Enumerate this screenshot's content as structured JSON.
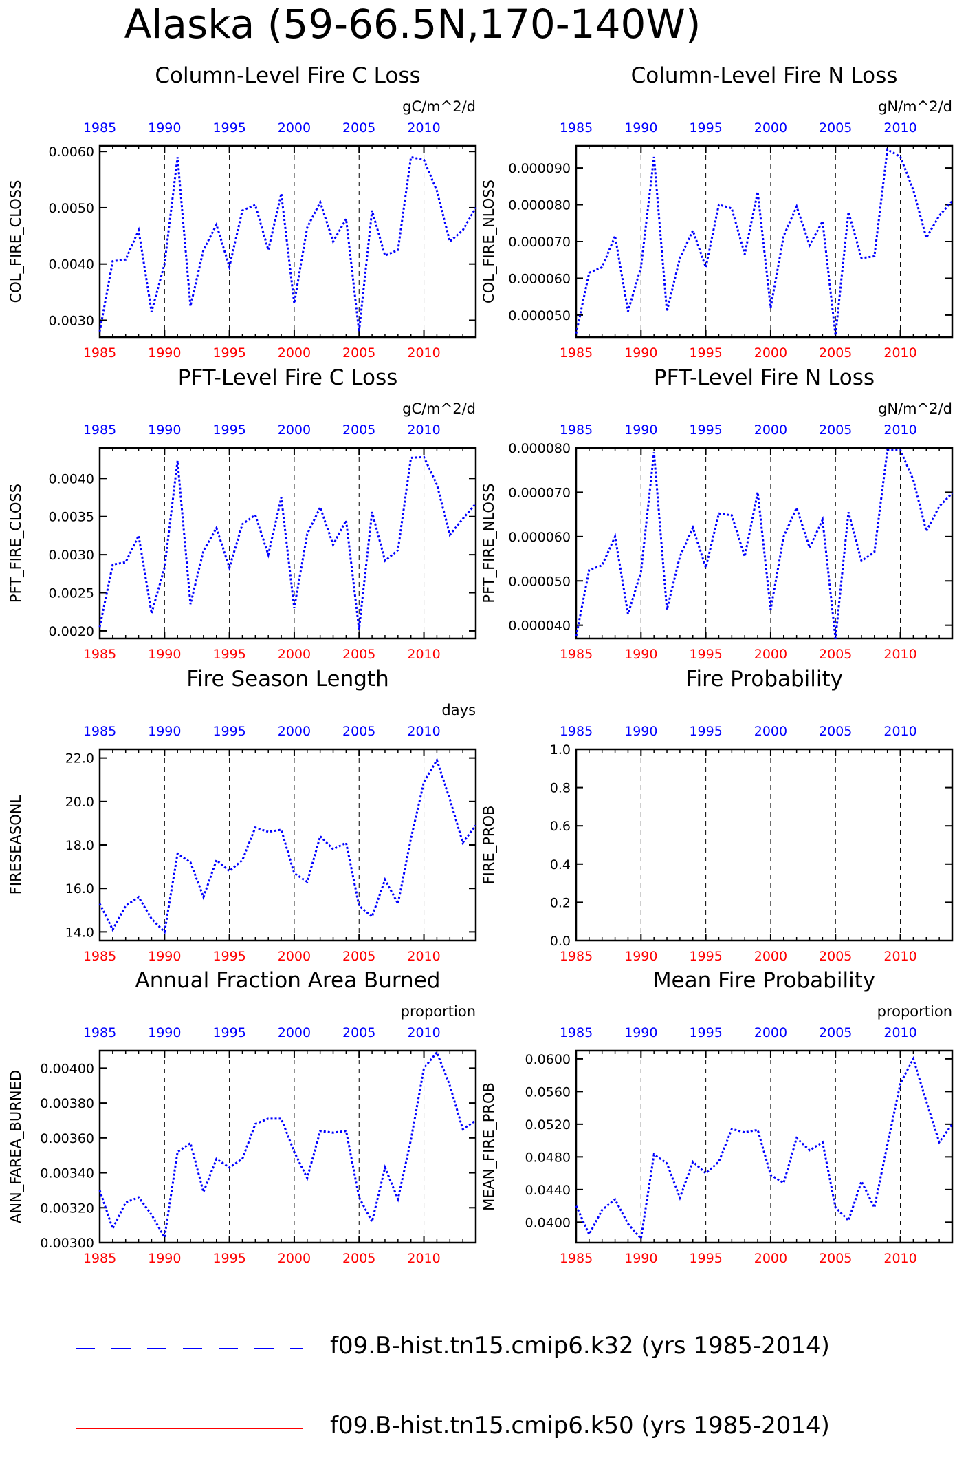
{
  "title": "Alaska (59-66.5N,170-140W)",
  "colors": {
    "bottom_axis": "#ff0000",
    "top_axis": "#0000ff",
    "series_blue": "#0000ff",
    "series_red": "#ff0000"
  },
  "legend": [
    {
      "label": "f09.B-hist.tn15.cmip6.k32 (yrs 1985-2014)",
      "color": "#0000ff",
      "style": "dashed"
    },
    {
      "label": "f09.B-hist.tn15.cmip6.k50 (yrs 1985-2014)",
      "color": "#ff0000",
      "style": "solid"
    }
  ],
  "chart_data": [
    {
      "type": "line",
      "title": "Column-Level Fire C Loss",
      "ylabel": "COL_FIRE_CLOSS",
      "units": "gC/m^2/d",
      "xlim": [
        1985,
        2014
      ],
      "ylim": [
        0.0027,
        0.0061
      ],
      "yticks": [
        "0.0030",
        "0.0040",
        "0.0050",
        "0.0060"
      ],
      "ytick_values": [
        0.003,
        0.004,
        0.005,
        0.006
      ],
      "xticks": [
        "1985",
        "1990",
        "1995",
        "2000",
        "2005",
        "2010"
      ],
      "x": [
        1985,
        1986,
        1987,
        1988,
        1989,
        1990,
        1991,
        1992,
        1993,
        1994,
        1995,
        1996,
        1997,
        1998,
        1999,
        2000,
        2001,
        2002,
        2003,
        2004,
        2005,
        2006,
        2007,
        2008,
        2009,
        2010,
        2011,
        2012,
        2013,
        2014
      ],
      "values": [
        0.0028,
        0.00405,
        0.00408,
        0.0046,
        0.00315,
        0.004,
        0.0059,
        0.00325,
        0.00425,
        0.0047,
        0.00395,
        0.00495,
        0.00505,
        0.00425,
        0.00525,
        0.0033,
        0.00465,
        0.0051,
        0.0044,
        0.0048,
        0.0028,
        0.00495,
        0.00415,
        0.00425,
        0.0059,
        0.00585,
        0.0053,
        0.0044,
        0.0046,
        0.005
      ]
    },
    {
      "type": "line",
      "title": "Column-Level Fire N Loss",
      "ylabel": "COL_FIRE_NLOSS",
      "units": "gN/m^2/d",
      "xlim": [
        1985,
        2014
      ],
      "ylim": [
        4.4e-05,
        9.6e-05
      ],
      "yticks": [
        "0.000050",
        "0.000060",
        "0.000070",
        "0.000080",
        "0.000090"
      ],
      "ytick_values": [
        5e-05,
        6e-05,
        7e-05,
        8e-05,
        9e-05
      ],
      "xticks": [
        "1985",
        "1990",
        "1995",
        "2000",
        "2005",
        "2010"
      ],
      "x": [
        1985,
        1986,
        1987,
        1988,
        1989,
        1990,
        1991,
        1992,
        1993,
        1994,
        1995,
        1996,
        1997,
        1998,
        1999,
        2000,
        2001,
        2002,
        2003,
        2004,
        2005,
        2006,
        2007,
        2008,
        2009,
        2010,
        2011,
        2012,
        2013,
        2014
      ],
      "values": [
        4.5e-05,
        6.15e-05,
        6.3e-05,
        7.15e-05,
        5.1e-05,
        6.3e-05,
        9.3e-05,
        5.1e-05,
        6.55e-05,
        7.3e-05,
        6.3e-05,
        8e-05,
        7.9e-05,
        6.65e-05,
        8.35e-05,
        5.2e-05,
        7.15e-05,
        7.95e-05,
        6.9e-05,
        7.55e-05,
        4.45e-05,
        7.8e-05,
        6.55e-05,
        6.6e-05,
        9.5e-05,
        9.3e-05,
        8.4e-05,
        7.1e-05,
        7.7e-05,
        8.1e-05
      ]
    },
    {
      "type": "line",
      "title": "PFT-Level Fire C Loss",
      "ylabel": "PFT_FIRE_CLOSS",
      "units": "gC/m^2/d",
      "xlim": [
        1985,
        2014
      ],
      "ylim": [
        0.0019,
        0.0044
      ],
      "yticks": [
        "0.0020",
        "0.0025",
        "0.0030",
        "0.0035",
        "0.0040"
      ],
      "ytick_values": [
        0.002,
        0.0025,
        0.003,
        0.0035,
        0.004
      ],
      "xticks": [
        "1985",
        "1990",
        "1995",
        "2000",
        "2005",
        "2010"
      ],
      "x": [
        1985,
        1986,
        1987,
        1988,
        1989,
        1990,
        1991,
        1992,
        1993,
        1994,
        1995,
        1996,
        1997,
        1998,
        1999,
        2000,
        2001,
        2002,
        2003,
        2004,
        2005,
        2006,
        2007,
        2008,
        2009,
        2010,
        2011,
        2012,
        2013,
        2014
      ],
      "values": [
        0.00205,
        0.00287,
        0.0029,
        0.00325,
        0.00223,
        0.00283,
        0.00423,
        0.00235,
        0.00305,
        0.00335,
        0.00283,
        0.0034,
        0.00352,
        0.003,
        0.00375,
        0.0023,
        0.00327,
        0.00362,
        0.00313,
        0.00345,
        0.00202,
        0.00356,
        0.00292,
        0.00306,
        0.00427,
        0.00428,
        0.00392,
        0.00326,
        0.00347,
        0.00367
      ]
    },
    {
      "type": "line",
      "title": "PFT-Level Fire N Loss",
      "ylabel": "PFT_FIRE_NLOSS",
      "units": "gN/m^2/d",
      "xlim": [
        1985,
        2014
      ],
      "ylim": [
        3.7e-05,
        8e-05
      ],
      "yticks": [
        "0.000040",
        "0.000050",
        "0.000060",
        "0.000070",
        "0.000080"
      ],
      "ytick_values": [
        4e-05,
        5e-05,
        6e-05,
        7e-05,
        8e-05
      ],
      "xticks": [
        "1985",
        "1990",
        "1995",
        "2000",
        "2005",
        "2010"
      ],
      "x": [
        1985,
        1986,
        1987,
        1988,
        1989,
        1990,
        1991,
        1992,
        1993,
        1994,
        1995,
        1996,
        1997,
        1998,
        1999,
        2000,
        2001,
        2002,
        2003,
        2004,
        2005,
        2006,
        2007,
        2008,
        2009,
        2010,
        2011,
        2012,
        2013,
        2014
      ],
      "values": [
        3.75e-05,
        5.25e-05,
        5.35e-05,
        6e-05,
        4.25e-05,
        5.2e-05,
        7.9e-05,
        4.35e-05,
        5.55e-05,
        6.2e-05,
        5.3e-05,
        6.52e-05,
        6.48e-05,
        5.55e-05,
        7e-05,
        4.35e-05,
        6e-05,
        6.65e-05,
        5.75e-05,
        6.38e-05,
        3.7e-05,
        6.55e-05,
        5.45e-05,
        5.65e-05,
        7.95e-05,
        7.95e-05,
        7.28e-05,
        6.12e-05,
        6.68e-05,
        6.98e-05
      ]
    },
    {
      "type": "line",
      "title": "Fire Season Length",
      "ylabel": "FIRESEASONL",
      "units": "days",
      "xlim": [
        1985,
        2014
      ],
      "ylim": [
        13.6,
        22.4
      ],
      "yticks": [
        "14.0",
        "16.0",
        "18.0",
        "20.0",
        "22.0"
      ],
      "ytick_values": [
        14,
        16,
        18,
        20,
        22
      ],
      "xticks": [
        "1985",
        "1990",
        "1995",
        "2000",
        "2005",
        "2010"
      ],
      "x": [
        1985,
        1986,
        1987,
        1988,
        1989,
        1990,
        1991,
        1992,
        1993,
        1994,
        1995,
        1996,
        1997,
        1998,
        1999,
        2000,
        2001,
        2002,
        2003,
        2004,
        2005,
        2006,
        2007,
        2008,
        2009,
        2010,
        2011,
        2012,
        2013,
        2014
      ],
      "values": [
        15.3,
        14.1,
        15.2,
        15.6,
        14.6,
        14.0,
        17.6,
        17.2,
        15.6,
        17.3,
        16.8,
        17.3,
        18.8,
        18.6,
        18.7,
        16.7,
        16.3,
        18.4,
        17.8,
        18.1,
        15.2,
        14.7,
        16.4,
        15.3,
        18.3,
        20.9,
        21.9,
        20.1,
        18.1,
        18.9
      ]
    },
    {
      "type": "line",
      "title": "Fire Probability",
      "ylabel": "FIRE_PROB",
      "units": "",
      "xlim": [
        1985,
        2014
      ],
      "ylim": [
        0.0,
        1.0
      ],
      "yticks": [
        "0.0",
        "0.2",
        "0.4",
        "0.6",
        "0.8",
        "1.0"
      ],
      "ytick_values": [
        0,
        0.2,
        0.4,
        0.6,
        0.8,
        1.0
      ],
      "xticks": [
        "1985",
        "1990",
        "1995",
        "2000",
        "2005",
        "2010"
      ],
      "x": [],
      "values": []
    },
    {
      "type": "line",
      "title": "Annual Fraction Area Burned",
      "ylabel": "ANN_FAREA_BURNED",
      "units": "proportion",
      "xlim": [
        1985,
        2014
      ],
      "ylim": [
        0.003,
        0.0041
      ],
      "yticks": [
        "0.00300",
        "0.00320",
        "0.00340",
        "0.00360",
        "0.00380",
        "0.00400"
      ],
      "ytick_values": [
        0.003,
        0.0032,
        0.0034,
        0.0036,
        0.0038,
        0.004
      ],
      "xticks": [
        "1985",
        "1990",
        "1995",
        "2000",
        "2005",
        "2010"
      ],
      "x": [
        1985,
        1986,
        1987,
        1988,
        1989,
        1990,
        1991,
        1992,
        1993,
        1994,
        1995,
        1996,
        1997,
        1998,
        1999,
        2000,
        2001,
        2002,
        2003,
        2004,
        2005,
        2006,
        2007,
        2008,
        2009,
        2010,
        2011,
        2012,
        2013,
        2014
      ],
      "values": [
        0.0033,
        0.00308,
        0.00323,
        0.00326,
        0.00316,
        0.00303,
        0.00352,
        0.00357,
        0.00329,
        0.00348,
        0.00343,
        0.00348,
        0.00368,
        0.00371,
        0.00371,
        0.00352,
        0.00337,
        0.00364,
        0.00363,
        0.00364,
        0.00326,
        0.00312,
        0.00343,
        0.00325,
        0.00359,
        0.004,
        0.00409,
        0.0039,
        0.00365,
        0.0037
      ]
    },
    {
      "type": "line",
      "title": "Mean Fire Probability",
      "ylabel": "MEAN_FIRE_PROB",
      "units": "proportion",
      "xlim": [
        1985,
        2014
      ],
      "ylim": [
        0.0375,
        0.061
      ],
      "yticks": [
        "0.0400",
        "0.0440",
        "0.0480",
        "0.0520",
        "0.0560",
        "0.0600"
      ],
      "ytick_values": [
        0.04,
        0.044,
        0.048,
        0.052,
        0.056,
        0.06
      ],
      "xticks": [
        "1985",
        "1990",
        "1995",
        "2000",
        "2005",
        "2010"
      ],
      "x": [
        1985,
        1986,
        1987,
        1988,
        1989,
        1990,
        1991,
        1992,
        1993,
        1994,
        1995,
        1996,
        1997,
        1998,
        1999,
        2000,
        2001,
        2002,
        2003,
        2004,
        2005,
        2006,
        2007,
        2008,
        2009,
        2010,
        2011,
        2012,
        2013,
        2014
      ],
      "values": [
        0.042,
        0.0385,
        0.0415,
        0.0428,
        0.0398,
        0.038,
        0.0483,
        0.0472,
        0.043,
        0.0474,
        0.046,
        0.0474,
        0.0514,
        0.051,
        0.0513,
        0.0458,
        0.0448,
        0.0503,
        0.0488,
        0.0498,
        0.0418,
        0.0402,
        0.045,
        0.0418,
        0.0495,
        0.057,
        0.06,
        0.0548,
        0.0498,
        0.052
      ]
    }
  ]
}
